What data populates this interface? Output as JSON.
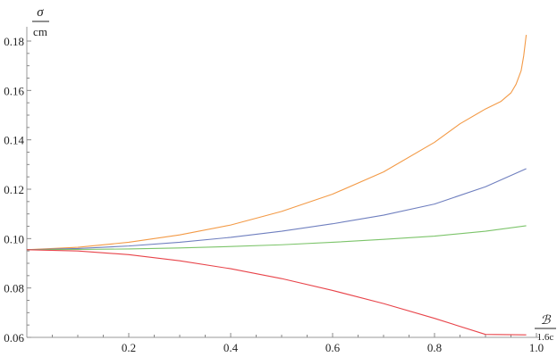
{
  "chart_data": {
    "type": "line",
    "title": "",
    "xlabel": {
      "numerator": "ℬ",
      "denominator": "1.6c"
    },
    "ylabel": {
      "numerator": "σ",
      "denominator": "cm"
    },
    "xlim": [
      0,
      1.0
    ],
    "ylim": [
      0.06,
      0.18
    ],
    "x_ticks": [
      0.2,
      0.4,
      0.6,
      0.8,
      1.0
    ],
    "x_tick_labels": [
      "0.2",
      "0.4",
      "0.6",
      "0.8",
      "1.0"
    ],
    "y_ticks": [
      0.06,
      0.08,
      0.1,
      0.12,
      0.14,
      0.16,
      0.18
    ],
    "y_tick_labels": [
      "0.06",
      "0.08",
      "0.10",
      "0.12",
      "0.14",
      "0.16",
      "0.18"
    ],
    "grid": false,
    "legend": "none",
    "series": [
      {
        "color": "#f39a46",
        "x": [
          0.0,
          0.1,
          0.2,
          0.3,
          0.4,
          0.5,
          0.6,
          0.7,
          0.8,
          0.85,
          0.9,
          0.93,
          0.95,
          0.96,
          0.97,
          0.975,
          0.98
        ],
        "y": [
          0.0955,
          0.0965,
          0.0985,
          0.1015,
          0.1055,
          0.111,
          0.118,
          0.127,
          0.139,
          0.1465,
          0.1525,
          0.1555,
          0.159,
          0.1625,
          0.168,
          0.174,
          0.1825
        ]
      },
      {
        "color": "#6f7fbf",
        "x": [
          0.0,
          0.1,
          0.2,
          0.3,
          0.4,
          0.5,
          0.6,
          0.7,
          0.8,
          0.9,
          0.98
        ],
        "y": [
          0.0955,
          0.096,
          0.097,
          0.0985,
          0.1005,
          0.103,
          0.106,
          0.1095,
          0.114,
          0.121,
          0.1283
        ]
      },
      {
        "color": "#7cc46a",
        "x": [
          0.0,
          0.1,
          0.2,
          0.3,
          0.4,
          0.5,
          0.6,
          0.7,
          0.8,
          0.9,
          0.98
        ],
        "y": [
          0.0955,
          0.0956,
          0.0958,
          0.0962,
          0.0968,
          0.0975,
          0.0985,
          0.0997,
          0.101,
          0.103,
          0.1052
        ]
      },
      {
        "color": "#e8444a",
        "x": [
          0.0,
          0.1,
          0.2,
          0.3,
          0.4,
          0.5,
          0.6,
          0.7,
          0.8,
          0.9,
          0.98
        ],
        "y": [
          0.0955,
          0.095,
          0.0935,
          0.091,
          0.0878,
          0.0838,
          0.079,
          0.0737,
          0.0677,
          0.0612,
          0.061
        ]
      }
    ]
  }
}
